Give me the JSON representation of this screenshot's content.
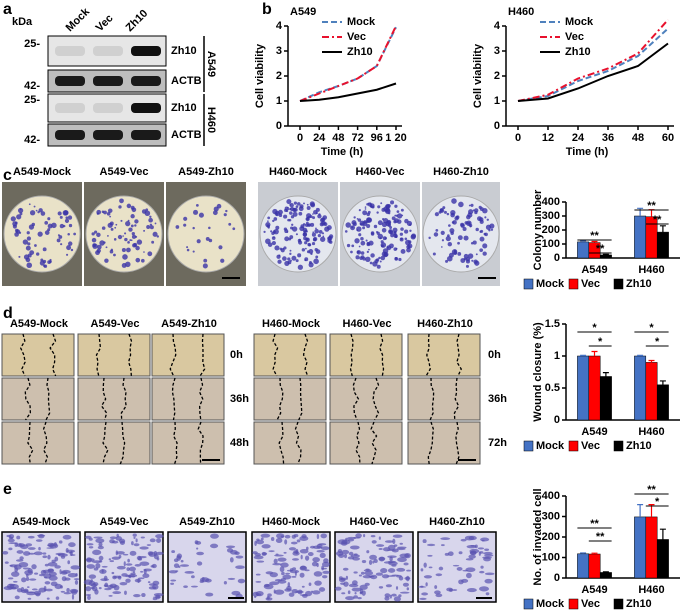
{
  "panels": [
    "a",
    "b",
    "c",
    "d",
    "e"
  ],
  "blot": {
    "unit": "kDa",
    "lanes": [
      "Mock",
      "Vec",
      "Zh10"
    ],
    "markers": [
      "25-",
      "42-",
      "25-",
      "42-"
    ],
    "bands": [
      "Zh10",
      "ACTB",
      "Zh10",
      "ACTB"
    ],
    "cell_lines": [
      "A549",
      "H460"
    ]
  },
  "colony_images": [
    "A549-Mock",
    "A549-Vec",
    "A549-Zh10",
    "H460-Mock",
    "H460-Vec",
    "H460-Zh10"
  ],
  "wound_images": [
    "A549-Mock",
    "A549-Vec",
    "A549-Zh10",
    "H460-Mock",
    "H460-Vec",
    "H460-Zh10"
  ],
  "wound_times": [
    [
      "0h",
      "36h",
      "48h"
    ],
    [
      "0h",
      "36h",
      "72h"
    ]
  ],
  "invasion_images": [
    "A549-Mock",
    "A549-Vec",
    "A549-Zh10",
    "H460-Mock",
    "H460-Vec",
    "H460-Zh10"
  ],
  "chart_data": [
    {
      "type": "line",
      "title": "A549",
      "xlabel": "Time (h)",
      "ylabel": "Cell viability",
      "x": [
        0,
        24,
        48,
        72,
        96,
        120
      ],
      "xlim": [
        0,
        120
      ],
      "xticks": [
        0,
        24,
        48,
        72,
        96,
        {
          "value": 120,
          "label": "1 20"
        }
      ],
      "ylim": [
        0,
        4
      ],
      "yticks": [
        0,
        1,
        2,
        3,
        4
      ],
      "series": [
        {
          "name": "Mock",
          "color": "#4f81bd",
          "dash": "dashed",
          "values": [
            1,
            1.35,
            1.6,
            1.9,
            2.4,
            3.95
          ]
        },
        {
          "name": "Vec",
          "color": "#e8112d",
          "dash": "dashdot",
          "values": [
            1,
            1.3,
            1.6,
            1.9,
            2.4,
            4.0
          ]
        },
        {
          "name": "Zh10",
          "color": "#000000",
          "dash": "solid",
          "values": [
            1,
            1.05,
            1.15,
            1.3,
            1.45,
            1.7
          ]
        }
      ]
    },
    {
      "type": "line",
      "title": "H460",
      "xlabel": "Time (h)",
      "ylabel": "Cell viability",
      "x": [
        0,
        12,
        24,
        36,
        48,
        60
      ],
      "xlim": [
        0,
        60
      ],
      "xticks": [
        0,
        12,
        24,
        36,
        48,
        60
      ],
      "ylim": [
        0,
        4
      ],
      "yticks": [
        0,
        1,
        2,
        3,
        4
      ],
      "series": [
        {
          "name": "Mock",
          "color": "#4f81bd",
          "dash": "dashed",
          "values": [
            1,
            1.2,
            1.8,
            2.2,
            2.8,
            3.9
          ]
        },
        {
          "name": "Vec",
          "color": "#e8112d",
          "dash": "dashdot",
          "values": [
            1,
            1.25,
            1.9,
            2.3,
            2.9,
            4.25
          ]
        },
        {
          "name": "Zh10",
          "color": "#000000",
          "dash": "solid",
          "values": [
            1,
            1.1,
            1.5,
            2.0,
            2.4,
            3.3
          ]
        }
      ]
    },
    {
      "type": "bar",
      "ylabel": "Colony number",
      "categories": [
        "A549",
        "H460"
      ],
      "ylim": [
        0,
        400
      ],
      "yticks": [
        0,
        100,
        200,
        300,
        400
      ],
      "series": [
        {
          "name": "Mock",
          "color": "#4472c4",
          "values": [
            115,
            300
          ],
          "errors": [
            8,
            55
          ]
        },
        {
          "name": "Vec",
          "color": "#ff0000",
          "values": [
            110,
            295
          ],
          "errors": [
            8,
            50
          ]
        },
        {
          "name": "Zh10",
          "color": "#000000",
          "values": [
            22,
            185
          ],
          "errors": [
            4,
            45
          ]
        }
      ],
      "annotations": [
        "**",
        "**",
        "**",
        "**"
      ]
    },
    {
      "type": "bar",
      "ylabel": "Wound closure  (%)",
      "categories": [
        "A549",
        "H460"
      ],
      "ylim": [
        0,
        1.5
      ],
      "yticks": [
        0,
        0.5,
        1,
        1.5
      ],
      "series": [
        {
          "name": "Mock",
          "color": "#4472c4",
          "values": [
            1,
            1
          ],
          "errors": [
            0.01,
            0.01
          ]
        },
        {
          "name": "Vec",
          "color": "#ff0000",
          "values": [
            1,
            0.9
          ],
          "errors": [
            0.07,
            0.03
          ]
        },
        {
          "name": "Zh10",
          "color": "#000000",
          "values": [
            0.68,
            0.55
          ],
          "errors": [
            0.06,
            0.06
          ]
        }
      ],
      "annotations": [
        "*",
        "*",
        "*",
        "*"
      ]
    },
    {
      "type": "bar",
      "ylabel": "No. of invaded cell",
      "categories": [
        "A549",
        "H460"
      ],
      "ylim": [
        0,
        400
      ],
      "yticks": [
        0,
        100,
        200,
        300,
        400
      ],
      "series": [
        {
          "name": "Mock",
          "color": "#4472c4",
          "values": [
            118,
            298
          ],
          "errors": [
            4,
            60
          ]
        },
        {
          "name": "Vec",
          "color": "#ff0000",
          "values": [
            117,
            298
          ],
          "errors": [
            4,
            60
          ]
        },
        {
          "name": "Zh10",
          "color": "#000000",
          "values": [
            27,
            188
          ],
          "errors": [
            3,
            50
          ]
        }
      ],
      "annotations": [
        "**",
        "**",
        "**",
        "*"
      ]
    }
  ]
}
